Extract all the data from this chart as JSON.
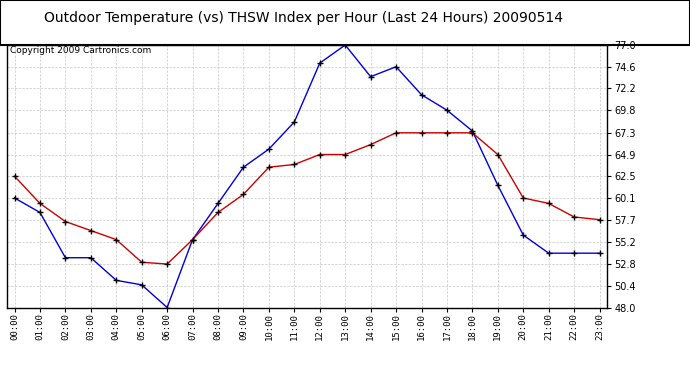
{
  "title": "Outdoor Temperature (vs) THSW Index per Hour (Last 24 Hours) 20090514",
  "copyright": "Copyright 2009 Cartronics.com",
  "hours": [
    "00:00",
    "01:00",
    "02:00",
    "03:00",
    "04:00",
    "05:00",
    "06:00",
    "07:00",
    "08:00",
    "09:00",
    "10:00",
    "11:00",
    "12:00",
    "13:00",
    "14:00",
    "15:00",
    "16:00",
    "17:00",
    "18:00",
    "19:00",
    "20:00",
    "21:00",
    "22:00",
    "23:00"
  ],
  "blue_thsw": [
    60.1,
    58.5,
    53.5,
    53.5,
    51.0,
    50.5,
    48.0,
    55.5,
    59.5,
    63.5,
    65.5,
    68.5,
    75.0,
    77.0,
    73.5,
    74.6,
    71.5,
    69.8,
    67.5,
    61.5,
    56.0,
    54.0,
    54.0,
    54.0
  ],
  "red_temp": [
    62.5,
    59.5,
    57.5,
    56.5,
    55.5,
    53.0,
    52.8,
    55.5,
    58.5,
    60.5,
    63.5,
    63.8,
    64.9,
    64.9,
    66.0,
    67.3,
    67.3,
    67.3,
    67.3,
    64.9,
    60.1,
    59.5,
    58.0,
    57.7
  ],
  "ylim": [
    48.0,
    77.0
  ],
  "yticks": [
    48.0,
    50.4,
    52.8,
    55.2,
    57.7,
    60.1,
    62.5,
    64.9,
    67.3,
    69.8,
    72.2,
    74.6,
    77.0
  ],
  "blue_color": "#0000dd",
  "red_color": "#cc0000",
  "bg_color": "#ffffff",
  "grid_color": "#bbbbbb",
  "title_fontsize": 10,
  "copyright_fontsize": 6.5
}
